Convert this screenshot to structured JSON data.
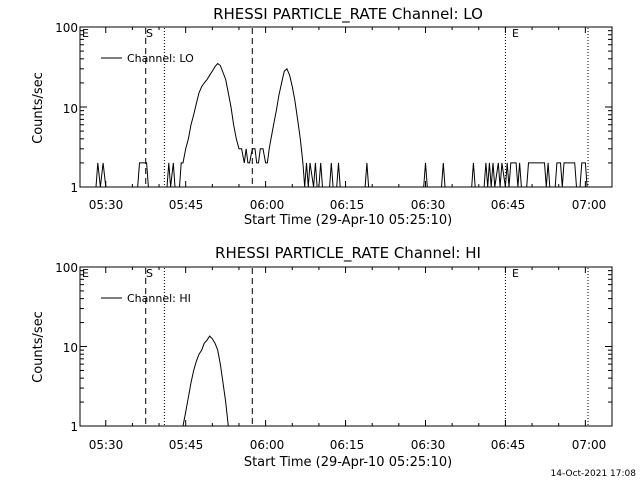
{
  "footer_timestamp": "14-Oct-2021 17:08",
  "chart_data": [
    {
      "type": "line",
      "title": "RHESSI PARTICLE_RATE Channel: LO",
      "xlabel": "Start Time (29-Apr-10 05:25:10)",
      "ylabel": "Counts/sec",
      "y_scale": "log",
      "ylim": [
        1,
        100
      ],
      "y_ticks": [
        {
          "value": 1,
          "label": "1"
        },
        {
          "value": 10,
          "label": "10"
        },
        {
          "value": 100,
          "label": "100"
        }
      ],
      "xlim": [
        "05:25:10",
        "07:05:00"
      ],
      "x_ticks": [
        "05:30",
        "05:45",
        "06:00",
        "06:15",
        "06:30",
        "06:45",
        "07:00"
      ],
      "legend": {
        "label": "Channel: LO",
        "placement": "top-left"
      },
      "markers": [
        {
          "label": "E",
          "time": "05:25:10",
          "style": "none"
        },
        {
          "label": "S",
          "time": "05:37:30",
          "style": "dashed"
        },
        {
          "label": "",
          "time": "05:41:00",
          "style": "dotted"
        },
        {
          "label": "",
          "time": "05:57:30",
          "style": "dashed"
        },
        {
          "label": "E",
          "time": "06:45:00",
          "style": "dotted"
        },
        {
          "label": "",
          "time": "07:00:30",
          "style": "dotted"
        }
      ],
      "series": [
        {
          "name": "Channel: LO",
          "points": [
            [
              "05:28:10",
              1
            ],
            [
              "05:28:30",
              2
            ],
            [
              "05:29:00",
              1
            ],
            [
              "05:29:30",
              2
            ],
            [
              "05:30:00",
              1
            ],
            [
              "05:36:00",
              1
            ],
            [
              "05:36:20",
              2
            ],
            [
              "05:37:40",
              2
            ],
            [
              "05:38:00",
              1
            ],
            [
              "05:41:30",
              1
            ],
            [
              "05:41:50",
              2
            ],
            [
              "05:42:10",
              1
            ],
            [
              "05:42:40",
              2
            ],
            [
              "05:43:00",
              1
            ],
            [
              "05:43:50",
              1
            ],
            [
              "05:44:10",
              2
            ],
            [
              "05:44:30",
              2
            ],
            [
              "05:45:00",
              3
            ],
            [
              "05:45:30",
              4
            ],
            [
              "05:46:00",
              6
            ],
            [
              "05:46:30",
              8
            ],
            [
              "05:47:00",
              11
            ],
            [
              "05:47:30",
              15
            ],
            [
              "05:48:00",
              18
            ],
            [
              "05:48:30",
              20
            ],
            [
              "05:49:00",
              22
            ],
            [
              "05:49:30",
              25
            ],
            [
              "05:50:00",
              28
            ],
            [
              "05:50:30",
              32
            ],
            [
              "05:51:00",
              35
            ],
            [
              "05:51:30",
              33
            ],
            [
              "05:52:00",
              27
            ],
            [
              "05:52:30",
              22
            ],
            [
              "05:53:00",
              15
            ],
            [
              "05:53:30",
              10
            ],
            [
              "05:54:00",
              6
            ],
            [
              "05:54:30",
              4
            ],
            [
              "05:55:00",
              3
            ],
            [
              "05:55:30",
              3
            ],
            [
              "05:56:00",
              2
            ],
            [
              "05:56:20",
              3
            ],
            [
              "05:56:40",
              2
            ],
            [
              "05:57:00",
              2
            ],
            [
              "05:57:30",
              3
            ],
            [
              "05:58:00",
              3
            ],
            [
              "05:58:20",
              2
            ],
            [
              "05:58:40",
              2
            ],
            [
              "05:59:00",
              3
            ],
            [
              "05:59:30",
              3
            ],
            [
              "06:00:00",
              2
            ],
            [
              "06:00:20",
              2
            ],
            [
              "06:00:40",
              3
            ],
            [
              "06:01:00",
              4
            ],
            [
              "06:01:30",
              6
            ],
            [
              "06:02:00",
              9
            ],
            [
              "06:02:30",
              14
            ],
            [
              "06:03:00",
              20
            ],
            [
              "06:03:30",
              28
            ],
            [
              "06:04:00",
              30
            ],
            [
              "06:04:30",
              25
            ],
            [
              "06:05:00",
              18
            ],
            [
              "06:05:30",
              12
            ],
            [
              "06:06:00",
              7
            ],
            [
              "06:06:30",
              4
            ],
            [
              "06:07:00",
              2
            ],
            [
              "06:07:20",
              1
            ],
            [
              "06:07:40",
              2
            ],
            [
              "06:08:00",
              1
            ],
            [
              "06:08:20",
              2
            ],
            [
              "06:09:00",
              1
            ],
            [
              "06:09:20",
              2
            ],
            [
              "06:09:40",
              1
            ],
            [
              "06:10:00",
              1
            ],
            [
              "06:10:20",
              2
            ],
            [
              "06:10:40",
              1
            ],
            [
              "06:12:00",
              1
            ],
            [
              "06:12:20",
              2
            ],
            [
              "06:12:40",
              1
            ],
            [
              "06:13:20",
              1
            ],
            [
              "06:13:40",
              2
            ],
            [
              "06:14:00",
              1
            ],
            [
              "06:18:40",
              1
            ],
            [
              "06:19:00",
              2
            ],
            [
              "06:19:20",
              1
            ],
            [
              "06:29:40",
              1
            ],
            [
              "06:30:00",
              2
            ],
            [
              "06:30:20",
              1
            ],
            [
              "06:33:00",
              1
            ],
            [
              "06:33:20",
              2
            ],
            [
              "06:33:40",
              1
            ],
            [
              "06:38:40",
              1
            ],
            [
              "06:39:00",
              2
            ],
            [
              "06:39:20",
              1
            ],
            [
              "06:41:00",
              1
            ],
            [
              "06:41:20",
              2
            ],
            [
              "06:41:40",
              1
            ],
            [
              "06:42:00",
              2
            ],
            [
              "06:42:20",
              1
            ],
            [
              "06:42:40",
              2
            ],
            [
              "06:43:00",
              1
            ],
            [
              "06:43:40",
              2
            ],
            [
              "06:44:00",
              1
            ],
            [
              "06:44:20",
              2
            ],
            [
              "06:45:00",
              1
            ],
            [
              "06:45:20",
              2
            ],
            [
              "06:45:40",
              1
            ],
            [
              "06:46:00",
              2
            ],
            [
              "06:47:00",
              2
            ],
            [
              "06:47:20",
              1
            ],
            [
              "06:47:40",
              2
            ],
            [
              "06:48:00",
              1
            ],
            [
              "06:49:00",
              1
            ],
            [
              "06:49:20",
              2
            ],
            [
              "06:52:20",
              2
            ],
            [
              "06:52:40",
              1
            ],
            [
              "06:53:00",
              2
            ],
            [
              "06:53:20",
              1
            ],
            [
              "06:54:20",
              1
            ],
            [
              "06:54:40",
              2
            ],
            [
              "06:55:20",
              2
            ],
            [
              "06:55:40",
              1
            ],
            [
              "06:56:00",
              2
            ],
            [
              "06:58:00",
              2
            ],
            [
              "06:58:20",
              1
            ],
            [
              "06:59:00",
              1
            ],
            [
              "06:59:20",
              2
            ],
            [
              "07:00:00",
              2
            ],
            [
              "07:00:20",
              1
            ]
          ]
        }
      ]
    },
    {
      "type": "line",
      "title": "RHESSI PARTICLE_RATE Channel: HI",
      "xlabel": "Start Time (29-Apr-10 05:25:10)",
      "ylabel": "Counts/sec",
      "y_scale": "log",
      "ylim": [
        1,
        100
      ],
      "y_ticks": [
        {
          "value": 1,
          "label": "1"
        },
        {
          "value": 10,
          "label": "10"
        },
        {
          "value": 100,
          "label": "100"
        }
      ],
      "xlim": [
        "05:25:10",
        "07:05:00"
      ],
      "x_ticks": [
        "05:30",
        "05:45",
        "06:00",
        "06:15",
        "06:30",
        "06:45",
        "07:00"
      ],
      "legend": {
        "label": "Channel: HI",
        "placement": "top-left"
      },
      "markers": [
        {
          "label": "E",
          "time": "05:25:10",
          "style": "none"
        },
        {
          "label": "S",
          "time": "05:37:30",
          "style": "dashed"
        },
        {
          "label": "",
          "time": "05:41:00",
          "style": "dotted"
        },
        {
          "label": "",
          "time": "05:57:30",
          "style": "dashed"
        },
        {
          "label": "E",
          "time": "06:45:00",
          "style": "dotted"
        },
        {
          "label": "",
          "time": "07:00:30",
          "style": "dotted"
        }
      ],
      "series": [
        {
          "name": "Channel: HI",
          "points": [
            [
              "05:44:30",
              1
            ],
            [
              "05:45:00",
              1.5
            ],
            [
              "05:45:30",
              2.3
            ],
            [
              "05:46:00",
              3.5
            ],
            [
              "05:46:30",
              5
            ],
            [
              "05:47:00",
              6.5
            ],
            [
              "05:47:30",
              8
            ],
            [
              "05:48:00",
              9
            ],
            [
              "05:48:30",
              11
            ],
            [
              "05:49:00",
              12
            ],
            [
              "05:49:30",
              13.5
            ],
            [
              "05:50:00",
              12.5
            ],
            [
              "05:50:30",
              11
            ],
            [
              "05:51:00",
              9
            ],
            [
              "05:51:30",
              6
            ],
            [
              "05:52:00",
              3.5
            ],
            [
              "05:52:30",
              2
            ],
            [
              "05:53:00",
              1
            ]
          ]
        }
      ]
    }
  ]
}
